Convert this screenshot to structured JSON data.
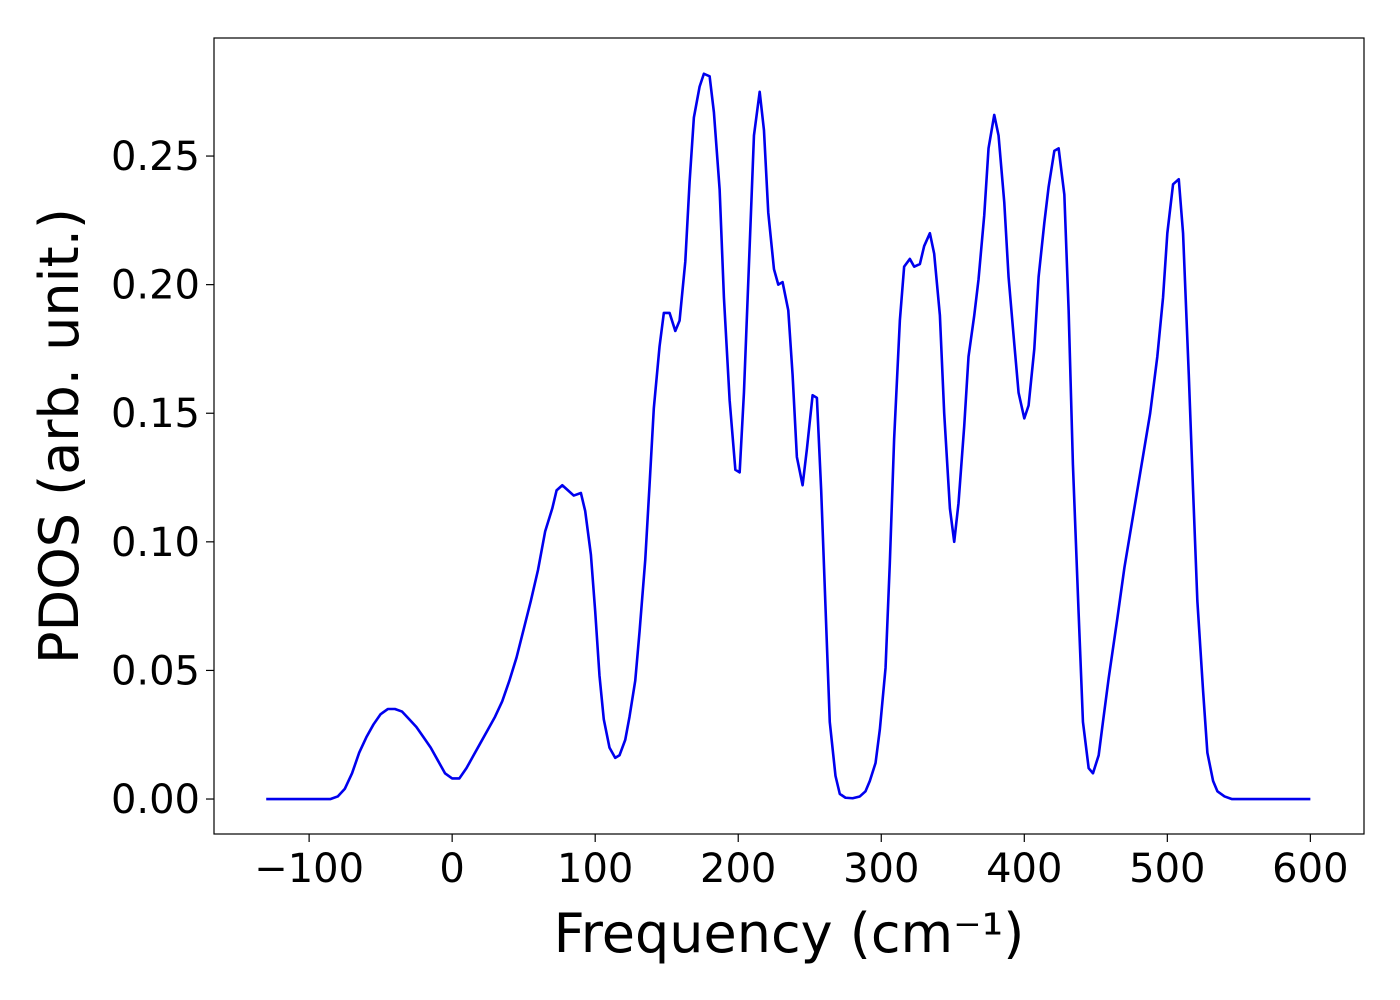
{
  "chart_data": {
    "type": "line",
    "x_label": "Frequency (cm⁻¹)",
    "y_label": "PDOS (arb. unit.)",
    "color": "#0000ee",
    "xlim": [
      -166.5,
      637.5
    ],
    "ylim": [
      -0.0136,
      0.2959
    ],
    "xticks": [
      {
        "value": -100,
        "label": "−100"
      },
      0,
      100,
      200,
      300,
      400,
      500,
      600
    ],
    "yticks": [
      {
        "value": 0,
        "label": "0.00"
      },
      {
        "value": 0.05,
        "label": "0.05"
      },
      {
        "value": 0.1,
        "label": "0.10"
      },
      {
        "value": 0.15,
        "label": "0.15"
      },
      {
        "value": 0.2,
        "label": "0.20"
      },
      {
        "value": 0.25,
        "label": "0.25"
      }
    ],
    "x": [
      -130,
      -120,
      -110,
      -100,
      -90,
      -85,
      -80,
      -75,
      -70,
      -65,
      -60,
      -55,
      -50,
      -45,
      -40,
      -35,
      -30,
      -25,
      -20,
      -15,
      -10,
      -5,
      0,
      5,
      10,
      15,
      20,
      25,
      30,
      35,
      40,
      45,
      50,
      55,
      60,
      65,
      70,
      73,
      77,
      81,
      85,
      90,
      93,
      97,
      100,
      103,
      106,
      110,
      114,
      117,
      121,
      124,
      128,
      131,
      135,
      138,
      141,
      145,
      148,
      152,
      156,
      159,
      163,
      166,
      169,
      173,
      176,
      180,
      183,
      187,
      190,
      194,
      198,
      201,
      204,
      208,
      211,
      215,
      218,
      221,
      225,
      228,
      231,
      235,
      238,
      241,
      245,
      248,
      252,
      255,
      258,
      261,
      264,
      268,
      271,
      275,
      280,
      285,
      289,
      292,
      296,
      299,
      303,
      306,
      309,
      313,
      316,
      320,
      323,
      327,
      330,
      334,
      337,
      341,
      344,
      348,
      351,
      354,
      358,
      361,
      365,
      368,
      372,
      375,
      379,
      382,
      386,
      389,
      393,
      396,
      400,
      403,
      407,
      410,
      414,
      417,
      421,
      424,
      428,
      431,
      434,
      438,
      441,
      445,
      448,
      452,
      455,
      459,
      465,
      470,
      476,
      482,
      488,
      493,
      497,
      500,
      504,
      508,
      511,
      515,
      518,
      521,
      525,
      528,
      532,
      535,
      540,
      545,
      550,
      560,
      570,
      580,
      590,
      600
    ],
    "values": [
      0,
      0,
      0,
      0,
      0,
      0,
      0.001,
      0.004,
      0.01,
      0.018,
      0.024,
      0.029,
      0.033,
      0.035,
      0.035,
      0.034,
      0.031,
      0.028,
      0.024,
      0.02,
      0.015,
      0.01,
      0.008,
      0.008,
      0.012,
      0.017,
      0.022,
      0.027,
      0.032,
      0.038,
      0.046,
      0.055,
      0.066,
      0.077,
      0.089,
      0.104,
      0.113,
      0.12,
      0.122,
      0.12,
      0.118,
      0.119,
      0.112,
      0.095,
      0.073,
      0.048,
      0.031,
      0.02,
      0.016,
      0.017,
      0.023,
      0.032,
      0.046,
      0.065,
      0.093,
      0.122,
      0.152,
      0.176,
      0.189,
      0.189,
      0.182,
      0.186,
      0.209,
      0.24,
      0.265,
      0.277,
      0.282,
      0.281,
      0.267,
      0.237,
      0.195,
      0.155,
      0.128,
      0.127,
      0.158,
      0.215,
      0.258,
      0.275,
      0.26,
      0.228,
      0.206,
      0.2,
      0.201,
      0.19,
      0.165,
      0.133,
      0.122,
      0.136,
      0.157,
      0.156,
      0.12,
      0.075,
      0.03,
      0.009,
      0.002,
      0.0005,
      0.0003,
      0.001,
      0.003,
      0.007,
      0.014,
      0.027,
      0.051,
      0.092,
      0.14,
      0.186,
      0.207,
      0.21,
      0.207,
      0.208,
      0.215,
      0.22,
      0.212,
      0.188,
      0.15,
      0.113,
      0.1,
      0.115,
      0.145,
      0.172,
      0.188,
      0.202,
      0.227,
      0.253,
      0.266,
      0.258,
      0.232,
      0.203,
      0.177,
      0.158,
      0.148,
      0.153,
      0.175,
      0.203,
      0.224,
      0.238,
      0.252,
      0.253,
      0.235,
      0.19,
      0.13,
      0.072,
      0.03,
      0.012,
      0.01,
      0.017,
      0.03,
      0.047,
      0.07,
      0.09,
      0.11,
      0.13,
      0.15,
      0.172,
      0.195,
      0.22,
      0.239,
      0.241,
      0.22,
      0.165,
      0.12,
      0.077,
      0.042,
      0.018,
      0.007,
      0.003,
      0.001,
      0,
      0,
      0,
      0,
      0,
      0,
      0
    ]
  }
}
